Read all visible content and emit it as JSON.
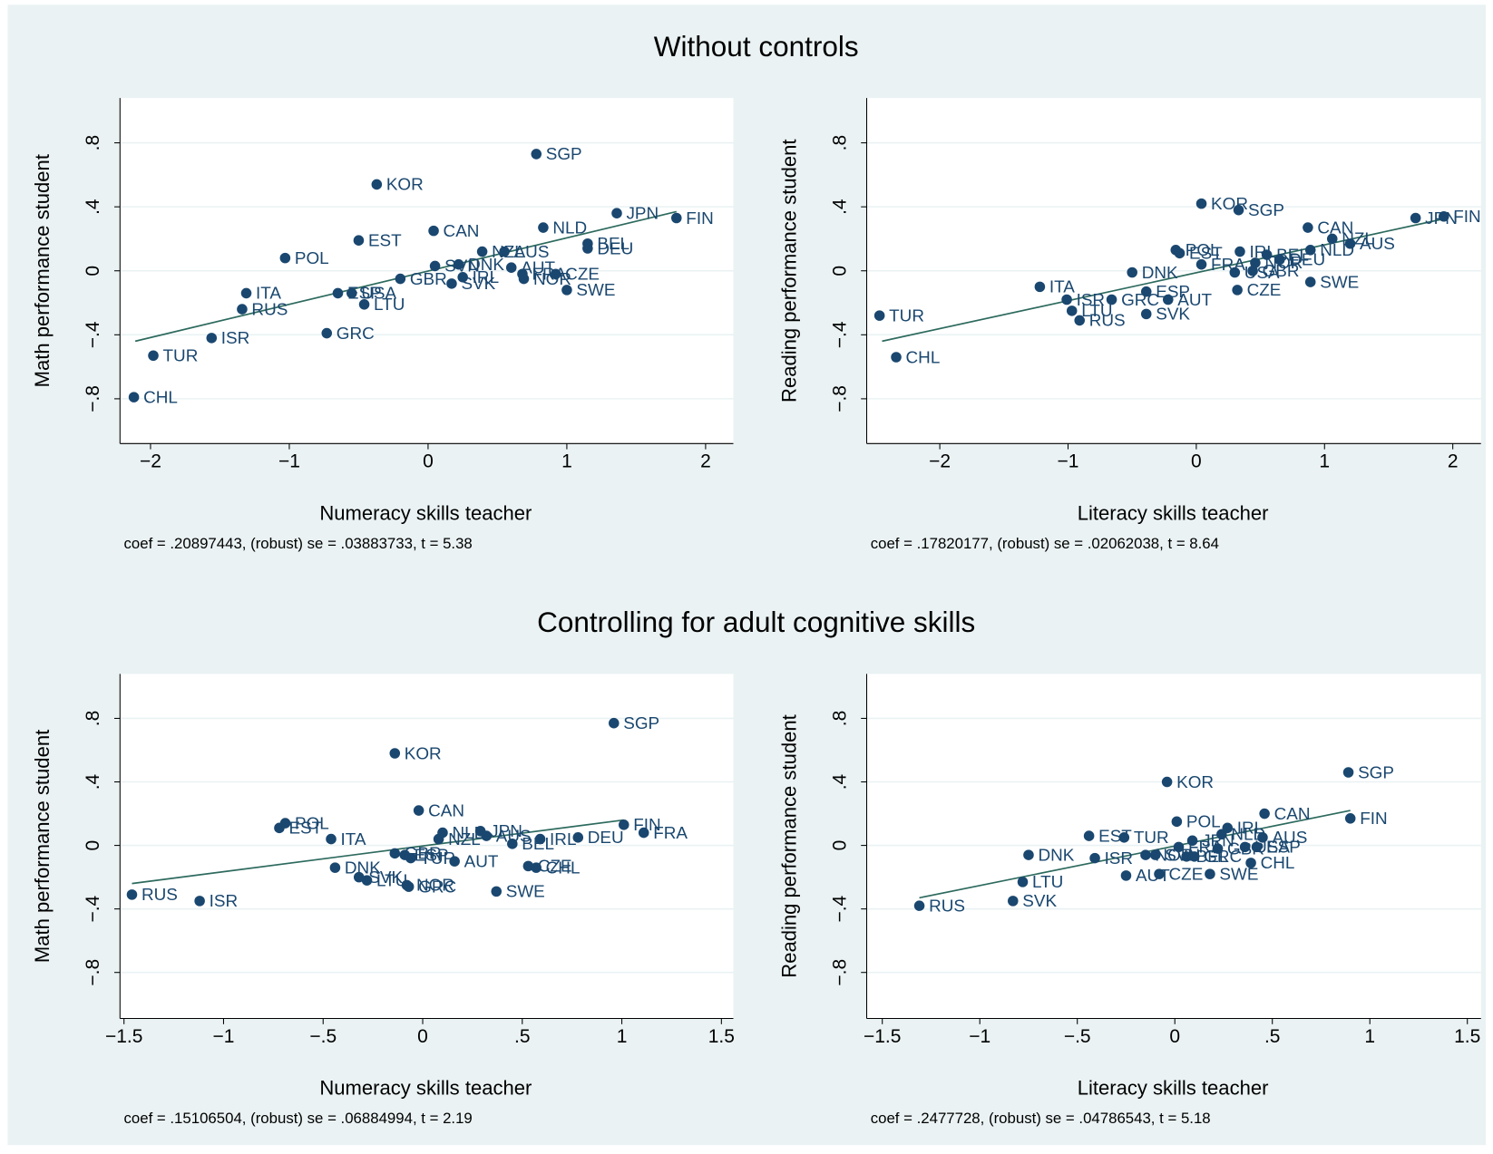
{
  "sections": [
    {
      "title": "Without controls"
    },
    {
      "title": "Controlling for adult cognitive skills"
    }
  ],
  "chart_data": [
    {
      "type": "scatter",
      "xlabel": "Numeracy skills teacher",
      "ylabel": "Math performance student",
      "note": "coef = .20897443, (robust) se = .03883733, t = 5.38",
      "color": "#1a476f",
      "grid": true,
      "xlim": [
        -2.22,
        2.2
      ],
      "ylim": [
        -1.08,
        1.08
      ],
      "xticks": [
        {
          "value": -2,
          "label": "−2"
        },
        {
          "value": -1,
          "label": "−1"
        },
        0,
        1,
        2
      ],
      "yticks": [
        {
          "value": -0.8,
          "label": "−.8"
        },
        {
          "value": -0.4,
          "label": "−.4"
        },
        0,
        {
          "value": 0.4,
          "label": ".4"
        },
        {
          "value": 0.8,
          "label": ".8"
        }
      ],
      "point_labels": [
        "CHL",
        "TUR",
        "ISR",
        "RUS",
        "ITA",
        "POL",
        "GRC",
        "ESP",
        "USA",
        "LTU",
        "EST",
        "KOR",
        "GBR",
        "CAN",
        "SVN",
        "SVK",
        "IRL",
        "DNK",
        "NZL",
        "AUS",
        "AUT",
        "NOR",
        "FRA",
        "CZE",
        "NLD",
        "SWE",
        "BEL",
        "DEU",
        "SGP",
        "JPN",
        "FIN"
      ],
      "x": [
        -2.12,
        -1.98,
        -1.56,
        -1.34,
        -1.31,
        -1.03,
        -0.73,
        -0.65,
        -0.55,
        -0.46,
        -0.5,
        -0.37,
        -0.2,
        0.04,
        0.05,
        0.17,
        0.25,
        0.22,
        0.39,
        0.55,
        0.6,
        0.69,
        0.68,
        0.92,
        0.83,
        1.0,
        1.15,
        1.15,
        0.78,
        1.36,
        1.79
      ],
      "values": [
        -0.79,
        -0.53,
        -0.42,
        -0.24,
        -0.14,
        0.08,
        -0.39,
        -0.14,
        -0.14,
        -0.21,
        0.19,
        0.54,
        -0.05,
        0.25,
        0.03,
        -0.08,
        -0.04,
        0.04,
        0.12,
        0.12,
        0.02,
        -0.05,
        -0.02,
        -0.02,
        0.27,
        -0.12,
        0.17,
        0.14,
        0.73,
        0.36,
        0.33
      ],
      "fit": {
        "x": [
          -2.11,
          1.79
        ],
        "y": [
          -0.44,
          0.37
        ]
      }
    },
    {
      "type": "scatter",
      "xlabel": "Literacy skills teacher",
      "ylabel": "Reading performance student",
      "note": "coef = .17820177, (robust) se = .02062038, t = 8.64",
      "color": "#1a476f",
      "grid": true,
      "xlim": [
        -2.57,
        2.22
      ],
      "ylim": [
        -1.08,
        1.08
      ],
      "xticks": [
        {
          "value": -2,
          "label": "−2"
        },
        {
          "value": -1,
          "label": "−1"
        },
        0,
        1,
        2
      ],
      "yticks": [
        {
          "value": -0.8,
          "label": "−.8"
        },
        {
          "value": -0.4,
          "label": "−.4"
        },
        0,
        {
          "value": 0.4,
          "label": ".4"
        },
        {
          "value": 0.8,
          "label": ".8"
        }
      ],
      "point_labels": [
        "TUR",
        "CHL",
        "ITA",
        "ISR",
        "LTU",
        "RUS",
        "GRC",
        "SVK",
        "AUT",
        "ESP",
        "DNK",
        "POL",
        "EST",
        "FRA",
        "KOR",
        "SGP",
        "IRL",
        "CZE",
        "USA",
        "GBR",
        "BEL",
        "DEU",
        "NOR",
        "NLD",
        "CAN",
        "SWE",
        "NZL",
        "AUS",
        "JPN",
        "FIN"
      ],
      "x": [
        -2.47,
        -2.34,
        -1.22,
        -1.01,
        -0.97,
        -0.91,
        -0.66,
        -0.39,
        -0.22,
        -0.39,
        -0.5,
        -0.16,
        -0.13,
        0.04,
        0.04,
        0.33,
        0.34,
        0.32,
        0.3,
        0.44,
        0.55,
        0.65,
        0.46,
        0.89,
        0.87,
        0.89,
        1.06,
        1.2,
        1.71,
        1.93
      ],
      "values": [
        -0.28,
        -0.54,
        -0.1,
        -0.18,
        -0.25,
        -0.31,
        -0.18,
        -0.27,
        -0.18,
        -0.13,
        -0.01,
        0.13,
        0.11,
        0.04,
        0.42,
        0.38,
        0.12,
        -0.12,
        -0.01,
        0.0,
        0.1,
        0.07,
        0.05,
        0.13,
        0.27,
        -0.07,
        0.2,
        0.17,
        0.33,
        0.34
      ],
      "fit": {
        "x": [
          -2.45,
          1.96
        ],
        "y": [
          -0.44,
          0.33
        ]
      }
    },
    {
      "type": "scatter",
      "xlabel": "Numeracy skills teacher",
      "ylabel": "Math performance student",
      "note": "coef = .15106504, (robust) se = .06884994, t = 2.19",
      "color": "#1a476f",
      "grid": true,
      "xlim": [
        -1.52,
        1.56
      ],
      "ylim": [
        -1.09,
        1.08
      ],
      "xticks": [
        {
          "value": -1.5,
          "label": "−1.5"
        },
        {
          "value": -1,
          "label": "−1"
        },
        {
          "value": -0.5,
          "label": "−.5"
        },
        0,
        {
          "value": 0.5,
          "label": ".5"
        },
        1,
        1.5
      ],
      "yticks": [
        {
          "value": -0.8,
          "label": "−.8"
        },
        {
          "value": -0.4,
          "label": "−.4"
        },
        0,
        {
          "value": 0.4,
          "label": ".4"
        },
        {
          "value": 0.8,
          "label": ".8"
        }
      ],
      "point_labels": [
        "RUS",
        "ISR",
        "EST",
        "POL",
        "ITA",
        "DNK",
        "SVK",
        "LTU",
        "KOR",
        "GBR",
        "ESP",
        "TUR",
        "NOR",
        "GRC",
        "CAN",
        "NLD",
        "NZL",
        "AUT",
        "JPN",
        "AUS",
        "BEL",
        "IRL",
        "CZE",
        "CHL",
        "DEU",
        "FIN",
        "FRA",
        "SWE",
        "SGP"
      ],
      "x": [
        -1.46,
        -1.12,
        -0.72,
        -0.69,
        -0.46,
        -0.44,
        -0.32,
        -0.28,
        -0.14,
        -0.14,
        -0.09,
        -0.06,
        -0.08,
        -0.07,
        -0.02,
        0.1,
        0.08,
        0.16,
        0.29,
        0.32,
        0.45,
        0.59,
        0.53,
        0.57,
        0.78,
        1.01,
        1.11,
        0.37,
        0.96
      ],
      "values": [
        -0.31,
        -0.35,
        0.11,
        0.14,
        0.04,
        -0.14,
        -0.2,
        -0.22,
        0.58,
        -0.05,
        -0.06,
        -0.08,
        -0.25,
        -0.26,
        0.22,
        0.08,
        0.04,
        -0.1,
        0.09,
        0.06,
        0.01,
        0.04,
        -0.13,
        -0.14,
        0.05,
        0.13,
        0.08,
        -0.29,
        0.77
      ],
      "fit": {
        "x": [
          -1.46,
          1.01
        ],
        "y": [
          -0.24,
          0.16
        ]
      }
    },
    {
      "type": "scatter",
      "xlabel": "Literacy skills teacher",
      "ylabel": "Reading performance student",
      "note": "coef = .2477728, (robust) se = .04786543, t = 5.18",
      "color": "#1a476f",
      "grid": true,
      "xlim": [
        -1.58,
        1.57
      ],
      "ylim": [
        -1.09,
        1.08
      ],
      "xticks": [
        {
          "value": -1.5,
          "label": "−1.5"
        },
        {
          "value": -1,
          "label": "−1"
        },
        {
          "value": -0.5,
          "label": "−.5"
        },
        0,
        {
          "value": 0.5,
          "label": ".5"
        },
        1,
        1.5
      ],
      "yticks": [
        {
          "value": -0.8,
          "label": "−.8"
        },
        {
          "value": -0.4,
          "label": "−.4"
        },
        0,
        {
          "value": 0.4,
          "label": ".4"
        },
        {
          "value": 0.8,
          "label": ".8"
        }
      ],
      "point_labels": [
        "RUS",
        "SVK",
        "LTU",
        "DNK",
        "ISR",
        "EST",
        "TUR",
        "AUT",
        "CZE",
        "NOR",
        "SVN",
        "KOR",
        "POL",
        "FRA",
        "JPN",
        "BEL",
        "GRC",
        "IRL",
        "NLD",
        "CAN",
        "AUS",
        "USA",
        "ESP",
        "CHL",
        "SWE",
        "GBR",
        "FIN",
        "SGP"
      ],
      "x": [
        -1.31,
        -0.83,
        -0.78,
        -0.75,
        -0.41,
        -0.44,
        -0.26,
        -0.25,
        -0.08,
        -0.15,
        -0.1,
        -0.04,
        0.01,
        0.02,
        0.09,
        0.06,
        0.1,
        0.27,
        0.24,
        0.46,
        0.45,
        0.36,
        0.42,
        0.39,
        0.18,
        0.22,
        0.9,
        0.89
      ],
      "values": [
        -0.38,
        -0.35,
        -0.23,
        -0.06,
        -0.08,
        0.06,
        0.05,
        -0.19,
        -0.18,
        -0.06,
        -0.06,
        0.4,
        0.15,
        -0.01,
        0.03,
        -0.07,
        -0.07,
        0.11,
        0.07,
        0.2,
        0.05,
        -0.01,
        -0.01,
        -0.11,
        -0.18,
        -0.02,
        0.17,
        0.46
      ],
      "fit": {
        "x": [
          -1.31,
          0.9
        ],
        "y": [
          -0.33,
          0.22
        ]
      }
    }
  ]
}
